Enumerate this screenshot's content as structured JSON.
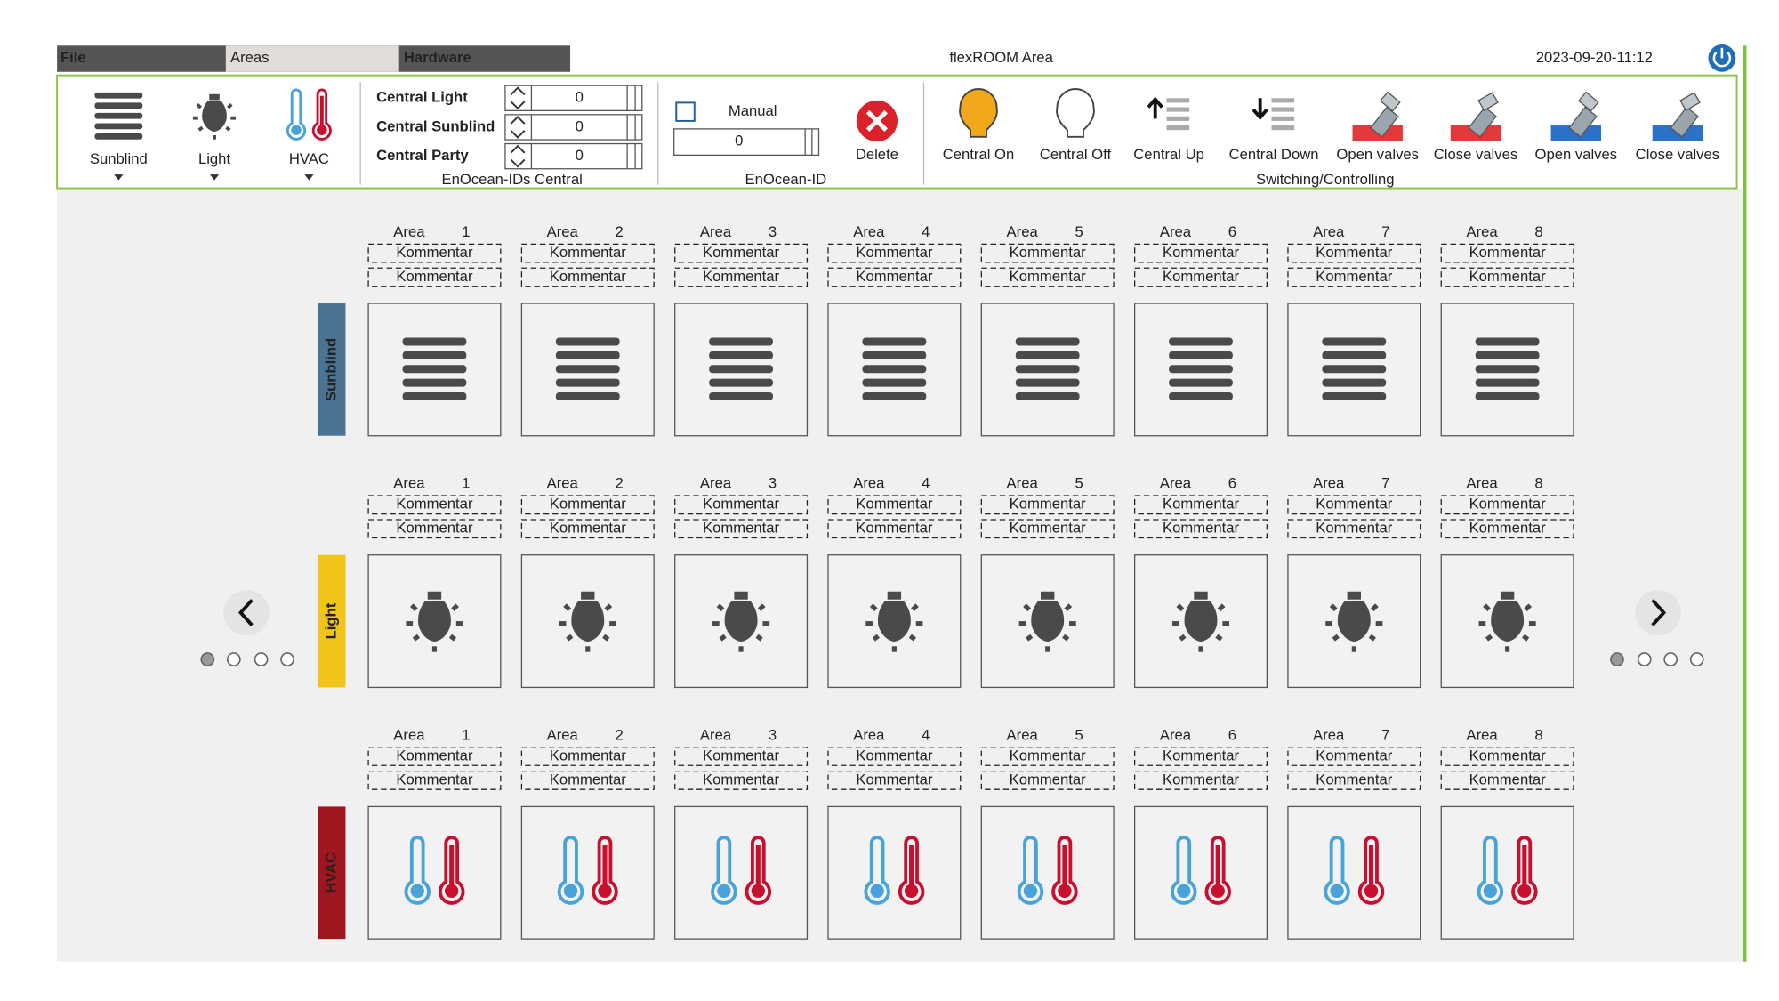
{
  "menu": {
    "tabs": [
      "File",
      "Areas",
      "Hardware"
    ],
    "title": "flexROOM Area",
    "datetime": "2023-09-20-11:12"
  },
  "ribbon": {
    "views": [
      "Sunblind",
      "Light",
      "HVAC"
    ],
    "central": {
      "fields": [
        {
          "label": "Central Light",
          "value": 0
        },
        {
          "label": "Central Sunblind",
          "value": 0
        },
        {
          "label": "Central Party",
          "value": 0
        }
      ],
      "group": "EnOcean-IDs Central"
    },
    "enocean": {
      "manual": "Manual",
      "value": 0,
      "delete": "Delete",
      "group": "EnOcean-ID"
    },
    "switching": {
      "buttons": [
        "Central On",
        "Central Off",
        "Central Up",
        "Central Down",
        "Open valves",
        "Close valves",
        "Open valves",
        "Close valves"
      ],
      "group": "Switching/Controlling"
    }
  },
  "rows": [
    {
      "label": "Sunblind",
      "areas": [
        {
          "label": "Area",
          "number": 1,
          "comments": [
            "Kommentar",
            "Kommentar"
          ]
        },
        {
          "label": "Area",
          "number": 2,
          "comments": [
            "Kommentar",
            "Kommentar"
          ]
        },
        {
          "label": "Area",
          "number": 3,
          "comments": [
            "Kommentar",
            "Kommentar"
          ]
        },
        {
          "label": "Area",
          "number": 4,
          "comments": [
            "Kommentar",
            "Kommentar"
          ]
        },
        {
          "label": "Area",
          "number": 5,
          "comments": [
            "Kommentar",
            "Kommentar"
          ]
        },
        {
          "label": "Area",
          "number": 6,
          "comments": [
            "Kommentar",
            "Kommentar"
          ]
        },
        {
          "label": "Area",
          "number": 7,
          "comments": [
            "Kommentar",
            "Kommentar"
          ]
        },
        {
          "label": "Area",
          "number": 8,
          "comments": [
            "Kommentar",
            "Kommentar"
          ]
        }
      ]
    },
    {
      "label": "Light",
      "areas": [
        {
          "label": "Area",
          "number": 1,
          "comments": [
            "Kommentar",
            "Kommentar"
          ]
        },
        {
          "label": "Area",
          "number": 2,
          "comments": [
            "Kommentar",
            "Kommentar"
          ]
        },
        {
          "label": "Area",
          "number": 3,
          "comments": [
            "Kommentar",
            "Kommentar"
          ]
        },
        {
          "label": "Area",
          "number": 4,
          "comments": [
            "Kommentar",
            "Kommentar"
          ]
        },
        {
          "label": "Area",
          "number": 5,
          "comments": [
            "Kommentar",
            "Kommentar"
          ]
        },
        {
          "label": "Area",
          "number": 6,
          "comments": [
            "Kommentar",
            "Kommentar"
          ]
        },
        {
          "label": "Area",
          "number": 7,
          "comments": [
            "Kommentar",
            "Kommentar"
          ]
        },
        {
          "label": "Area",
          "number": 8,
          "comments": [
            "Kommentar",
            "Kommentar"
          ]
        }
      ]
    },
    {
      "label": "HVAC",
      "areas": [
        {
          "label": "Area",
          "number": 1,
          "comments": [
            "Kommentar",
            "Kommentar"
          ]
        },
        {
          "label": "Area",
          "number": 2,
          "comments": [
            "Kommentar",
            "Kommentar"
          ]
        },
        {
          "label": "Area",
          "number": 3,
          "comments": [
            "Kommentar",
            "Kommentar"
          ]
        },
        {
          "label": "Area",
          "number": 4,
          "comments": [
            "Kommentar",
            "Kommentar"
          ]
        },
        {
          "label": "Area",
          "number": 5,
          "comments": [
            "Kommentar",
            "Kommentar"
          ]
        },
        {
          "label": "Area",
          "number": 6,
          "comments": [
            "Kommentar",
            "Kommentar"
          ]
        },
        {
          "label": "Area",
          "number": 7,
          "comments": [
            "Kommentar",
            "Kommentar"
          ]
        },
        {
          "label": "Area",
          "number": 8,
          "comments": [
            "Kommentar",
            "Kommentar"
          ]
        }
      ]
    }
  ]
}
